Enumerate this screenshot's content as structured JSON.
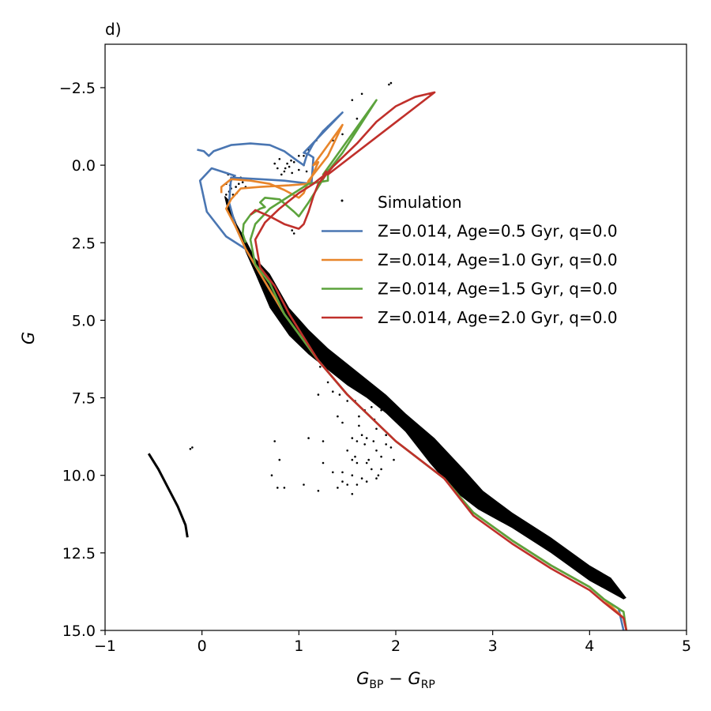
{
  "chart_data": {
    "type": "scatter",
    "panel_label": "d)",
    "xlabel": {
      "main1": "G",
      "sub1": "BP",
      "op": " − ",
      "main2": "G",
      "sub2": "RP"
    },
    "ylabel": "G",
    "xlim": [
      -1,
      5
    ],
    "ylim": [
      -3.9,
      15.0
    ],
    "y_inverted": true,
    "x_ticks": [
      -1,
      0,
      1,
      2,
      3,
      4,
      5
    ],
    "x_tick_labels": [
      "−1",
      "0",
      "1",
      "2",
      "3",
      "4",
      "5"
    ],
    "y_ticks": [
      -2.5,
      0.0,
      2.5,
      5.0,
      7.5,
      10.0,
      12.5,
      15.0
    ],
    "y_tick_labels": [
      "−2.5",
      "0.0",
      "2.5",
      "5.0",
      "7.5",
      "10.0",
      "12.5",
      "15.0"
    ],
    "grid": false,
    "legend_position": "upper-right",
    "simulation": {
      "name": "Simulation",
      "color": "#000000",
      "main_sequence_band": {
        "upper": [
          [
            0.24,
            1.0
          ],
          [
            0.27,
            1.1
          ],
          [
            0.3,
            1.4
          ],
          [
            0.36,
            1.9
          ],
          [
            0.45,
            2.4
          ],
          [
            0.55,
            3.0
          ],
          [
            0.7,
            3.5
          ],
          [
            0.9,
            4.6
          ],
          [
            1.1,
            5.3
          ],
          [
            1.3,
            5.9
          ],
          [
            1.5,
            6.4
          ],
          [
            1.7,
            6.9
          ],
          [
            1.9,
            7.4
          ],
          [
            2.1,
            8.0
          ],
          [
            2.4,
            8.8
          ],
          [
            2.7,
            9.8
          ],
          [
            2.9,
            10.5
          ],
          [
            3.2,
            11.2
          ],
          [
            3.6,
            12.0
          ],
          [
            4.0,
            12.9
          ],
          [
            4.22,
            13.3
          ],
          [
            4.38,
            13.95
          ]
        ],
        "lower": [
          [
            4.35,
            14.0
          ],
          [
            4.0,
            13.4
          ],
          [
            3.6,
            12.5
          ],
          [
            3.2,
            11.7
          ],
          [
            2.85,
            11.1
          ],
          [
            2.6,
            10.5
          ],
          [
            2.35,
            9.6
          ],
          [
            2.1,
            8.6
          ],
          [
            1.9,
            8.0
          ],
          [
            1.7,
            7.5
          ],
          [
            1.5,
            7.1
          ],
          [
            1.3,
            6.6
          ],
          [
            1.1,
            6.1
          ],
          [
            0.9,
            5.5
          ],
          [
            0.7,
            4.6
          ],
          [
            0.55,
            3.5
          ],
          [
            0.45,
            2.8
          ],
          [
            0.38,
            2.2
          ],
          [
            0.31,
            1.7
          ],
          [
            0.26,
            1.4
          ],
          [
            0.23,
            1.0
          ]
        ]
      },
      "white_dwarf_track": [
        [
          -0.55,
          9.3
        ],
        [
          -0.45,
          9.8
        ],
        [
          -0.35,
          10.4
        ],
        [
          -0.25,
          11.0
        ],
        [
          -0.17,
          11.6
        ],
        [
          -0.15,
          12.0
        ]
      ],
      "turnoff_clump": [
        [
          0.25,
          0.6
        ],
        [
          0.3,
          0.5
        ],
        [
          0.35,
          0.7
        ],
        [
          0.28,
          0.85
        ],
        [
          0.32,
          0.95
        ],
        [
          0.4,
          0.4
        ],
        [
          0.38,
          0.6
        ],
        [
          0.27,
          0.3
        ],
        [
          0.33,
          0.35
        ],
        [
          0.42,
          0.55
        ],
        [
          0.3,
          0.75
        ],
        [
          0.36,
          0.9
        ],
        [
          0.25,
          0.95
        ],
        [
          0.45,
          0.7
        ],
        [
          0.29,
          0.65
        ]
      ],
      "giant_clump": [
        [
          0.8,
          -0.2
        ],
        [
          0.78,
          0.1
        ],
        [
          0.85,
          0.2
        ],
        [
          0.9,
          0.05
        ],
        [
          0.95,
          -0.1
        ],
        [
          0.82,
          0.3
        ],
        [
          1.0,
          0.15
        ],
        [
          0.88,
          -0.05
        ],
        [
          1.05,
          0.0
        ],
        [
          0.93,
          0.25
        ],
        [
          1.0,
          -0.3
        ],
        [
          0.75,
          -0.05
        ],
        [
          0.86,
          0.1
        ],
        [
          1.08,
          0.2
        ],
        [
          0.92,
          -0.15
        ]
      ],
      "giant_sequence": [
        [
          1.05,
          -0.3
        ],
        [
          1.1,
          -0.5
        ],
        [
          1.15,
          -0.7
        ],
        [
          1.2,
          -0.9
        ],
        [
          1.25,
          -1.1
        ],
        [
          1.3,
          -1.25
        ],
        [
          1.18,
          -0.8
        ],
        [
          1.12,
          -0.6
        ],
        [
          1.55,
          -2.1
        ],
        [
          1.65,
          -2.3
        ],
        [
          1.93,
          -2.6
        ],
        [
          1.95,
          -2.65
        ],
        [
          1.6,
          -1.5
        ],
        [
          1.35,
          -0.8
        ],
        [
          1.45,
          -1.0
        ]
      ],
      "scatter_points": [
        [
          -0.1,
          9.1
        ],
        [
          -0.12,
          9.15
        ],
        [
          0.75,
          8.9
        ],
        [
          0.8,
          9.5
        ],
        [
          0.72,
          10.0
        ],
        [
          0.78,
          10.4
        ],
        [
          0.85,
          10.4
        ],
        [
          1.05,
          10.3
        ],
        [
          1.2,
          10.5
        ],
        [
          1.25,
          9.6
        ],
        [
          1.35,
          9.9
        ],
        [
          1.5,
          9.2
        ],
        [
          1.45,
          9.9
        ],
        [
          1.55,
          10.0
        ],
        [
          1.6,
          10.3
        ],
        [
          1.4,
          10.4
        ],
        [
          1.65,
          10.1
        ],
        [
          1.7,
          10.2
        ],
        [
          1.8,
          10.1
        ],
        [
          1.85,
          9.8
        ],
        [
          1.6,
          9.6
        ],
        [
          1.72,
          9.5
        ],
        [
          1.62,
          8.4
        ],
        [
          1.7,
          8.8
        ],
        [
          1.77,
          8.9
        ],
        [
          1.8,
          9.2
        ],
        [
          1.85,
          9.4
        ],
        [
          1.9,
          9.0
        ],
        [
          1.8,
          8.5
        ],
        [
          1.75,
          7.8
        ],
        [
          1.68,
          7.9
        ],
        [
          1.62,
          8.1
        ],
        [
          1.5,
          7.6
        ],
        [
          1.58,
          7.6
        ],
        [
          1.7,
          7.4
        ],
        [
          1.3,
          7.0
        ],
        [
          1.35,
          7.3
        ],
        [
          1.42,
          7.4
        ],
        [
          1.22,
          6.5
        ],
        [
          1.2,
          7.4
        ],
        [
          1.4,
          8.1
        ],
        [
          1.45,
          8.3
        ],
        [
          1.25,
          8.9
        ],
        [
          1.1,
          8.8
        ],
        [
          1.55,
          9.5
        ],
        [
          1.95,
          9.1
        ],
        [
          1.98,
          9.5
        ],
        [
          1.7,
          9.6
        ],
        [
          0.75,
          4.1
        ],
        [
          0.8,
          4.3
        ],
        [
          0.95,
          2.2
        ],
        [
          0.93,
          2.1
        ],
        [
          1.1,
          5.6
        ],
        [
          1.0,
          5.0
        ],
        [
          1.15,
          6.0
        ],
        [
          1.6,
          8.9
        ],
        [
          1.5,
          10.3
        ],
        [
          1.55,
          10.6
        ],
        [
          1.45,
          10.2
        ],
        [
          1.68,
          9.0
        ],
        [
          1.9,
          8.7
        ],
        [
          1.85,
          7.9
        ],
        [
          1.78,
          8.2
        ],
        [
          1.65,
          8.7
        ],
        [
          1.55,
          8.8
        ],
        [
          1.58,
          9.4
        ],
        [
          1.75,
          9.8
        ],
        [
          1.82,
          10.0
        ]
      ]
    },
    "series": [
      {
        "name": "Z=0.014, Age=0.5 Gyr, q=0.0",
        "color": "#4a76b2",
        "points": [
          [
            -0.05,
            -0.5
          ],
          [
            0.02,
            -0.45
          ],
          [
            0.07,
            -0.3
          ],
          [
            0.12,
            -0.45
          ],
          [
            0.3,
            -0.65
          ],
          [
            0.5,
            -0.7
          ],
          [
            0.7,
            -0.65
          ],
          [
            0.85,
            -0.45
          ],
          [
            0.98,
            -0.15
          ],
          [
            1.05,
            0.0
          ],
          [
            1.08,
            -0.3
          ],
          [
            1.15,
            -0.7
          ],
          [
            1.25,
            -1.1
          ],
          [
            1.45,
            -1.7
          ],
          [
            1.05,
            -0.4
          ],
          [
            1.1,
            -0.35
          ],
          [
            1.15,
            -0.25
          ],
          [
            1.13,
            0.6
          ],
          [
            0.85,
            0.5
          ],
          [
            0.6,
            0.45
          ],
          [
            0.3,
            0.4
          ],
          [
            0.28,
            1.2
          ],
          [
            0.35,
            2.0
          ],
          [
            0.45,
            2.7
          ],
          [
            0.6,
            3.5
          ],
          [
            0.85,
            4.8
          ],
          [
            1.2,
            6.3
          ],
          [
            1.5,
            7.4
          ],
          [
            2.0,
            8.9
          ],
          [
            2.5,
            10.1
          ],
          [
            2.8,
            11.2
          ],
          [
            3.2,
            12.1
          ],
          [
            3.6,
            12.9
          ],
          [
            4.0,
            13.6
          ],
          [
            4.15,
            14.0
          ],
          [
            4.3,
            14.3
          ],
          [
            4.35,
            15.0
          ]
        ],
        "isolated_prefix": [
          [
            0.35,
            0.35
          ],
          [
            0.1,
            0.1
          ],
          [
            -0.02,
            0.5
          ],
          [
            0.05,
            1.5
          ],
          [
            0.25,
            2.3
          ],
          [
            0.45,
            2.7
          ]
        ]
      },
      {
        "name": "Z=0.014, Age=1.0 Gyr, q=0.0",
        "color": "#e8852a",
        "points": [
          [
            0.2,
            0.9
          ],
          [
            0.2,
            0.7
          ],
          [
            0.3,
            0.45
          ],
          [
            0.5,
            0.5
          ],
          [
            0.7,
            0.6
          ],
          [
            0.85,
            0.8
          ],
          [
            1.0,
            1.05
          ],
          [
            1.05,
            0.9
          ],
          [
            1.1,
            0.5
          ],
          [
            1.2,
            0.1
          ],
          [
            1.3,
            -0.3
          ],
          [
            1.45,
            -1.3
          ],
          [
            1.15,
            0.0
          ],
          [
            1.2,
            -0.1
          ],
          [
            1.1,
            0.6
          ],
          [
            0.9,
            0.65
          ],
          [
            0.6,
            0.7
          ],
          [
            0.4,
            0.75
          ],
          [
            0.3,
            1.1
          ],
          [
            0.25,
            1.4
          ],
          [
            0.35,
            2.0
          ],
          [
            0.45,
            2.7
          ],
          [
            0.6,
            3.5
          ],
          [
            0.85,
            4.8
          ],
          [
            1.2,
            6.3
          ],
          [
            1.5,
            7.4
          ],
          [
            2.0,
            8.9
          ],
          [
            2.5,
            10.1
          ],
          [
            2.8,
            11.2
          ],
          [
            3.2,
            12.1
          ],
          [
            3.6,
            12.9
          ],
          [
            4.0,
            13.6
          ],
          [
            4.15,
            14.0
          ],
          [
            4.35,
            14.6
          ],
          [
            4.38,
            15.0
          ]
        ]
      },
      {
        "name": "Z=0.014, Age=1.5 Gyr, q=0.0",
        "color": "#5ca33c",
        "points": [
          [
            0.45,
            2.5
          ],
          [
            0.42,
            2.2
          ],
          [
            0.43,
            1.9
          ],
          [
            0.5,
            1.6
          ],
          [
            0.6,
            1.4
          ],
          [
            0.65,
            1.35
          ],
          [
            0.6,
            1.2
          ],
          [
            0.65,
            1.05
          ],
          [
            0.8,
            1.1
          ],
          [
            0.95,
            1.5
          ],
          [
            1.0,
            1.65
          ],
          [
            1.1,
            1.2
          ],
          [
            1.2,
            0.7
          ],
          [
            1.3,
            0.2
          ],
          [
            1.45,
            -0.4
          ],
          [
            1.8,
            -2.1
          ],
          [
            1.25,
            0.3
          ],
          [
            1.3,
            0.15
          ],
          [
            1.3,
            0.5
          ],
          [
            1.1,
            0.6
          ],
          [
            0.95,
            0.9
          ],
          [
            0.7,
            1.4
          ],
          [
            0.55,
            1.9
          ],
          [
            0.5,
            2.4
          ],
          [
            0.55,
            3.2
          ],
          [
            0.7,
            3.8
          ],
          [
            0.85,
            4.8
          ],
          [
            1.2,
            6.3
          ],
          [
            1.5,
            7.4
          ],
          [
            2.0,
            8.9
          ],
          [
            2.5,
            10.1
          ],
          [
            2.8,
            11.2
          ],
          [
            3.2,
            12.1
          ],
          [
            3.6,
            12.9
          ],
          [
            4.0,
            13.6
          ],
          [
            4.15,
            14.0
          ],
          [
            4.35,
            14.4
          ],
          [
            4.38,
            15.0
          ]
        ]
      },
      {
        "name": "Z=0.014, Age=2.0 Gyr, q=0.0",
        "color": "#c0302b",
        "points": [
          [
            0.5,
            1.6
          ],
          [
            0.55,
            1.45
          ],
          [
            0.7,
            1.65
          ],
          [
            0.85,
            1.9
          ],
          [
            1.0,
            2.05
          ],
          [
            1.05,
            1.9
          ],
          [
            1.1,
            1.5
          ],
          [
            1.15,
            1.0
          ],
          [
            1.2,
            0.6
          ],
          [
            1.35,
            0.05
          ],
          [
            1.6,
            -0.7
          ],
          [
            1.8,
            -1.4
          ],
          [
            2.0,
            -1.9
          ],
          [
            2.2,
            -2.2
          ],
          [
            2.4,
            -2.35
          ],
          [
            1.3,
            0.3
          ],
          [
            1.28,
            0.2
          ],
          [
            1.25,
            0.35
          ],
          [
            1.15,
            0.6
          ],
          [
            1.0,
            0.9
          ],
          [
            0.8,
            1.4
          ],
          [
            0.65,
            1.85
          ],
          [
            0.55,
            2.4
          ],
          [
            0.6,
            3.3
          ],
          [
            0.75,
            3.9
          ],
          [
            0.9,
            4.8
          ],
          [
            1.2,
            6.3
          ],
          [
            1.5,
            7.4
          ],
          [
            2.0,
            8.9
          ],
          [
            2.5,
            10.1
          ],
          [
            2.8,
            11.3
          ],
          [
            3.2,
            12.2
          ],
          [
            3.6,
            13.0
          ],
          [
            4.0,
            13.7
          ],
          [
            4.15,
            14.1
          ],
          [
            4.35,
            14.6
          ],
          [
            4.38,
            15.0
          ]
        ]
      }
    ]
  }
}
